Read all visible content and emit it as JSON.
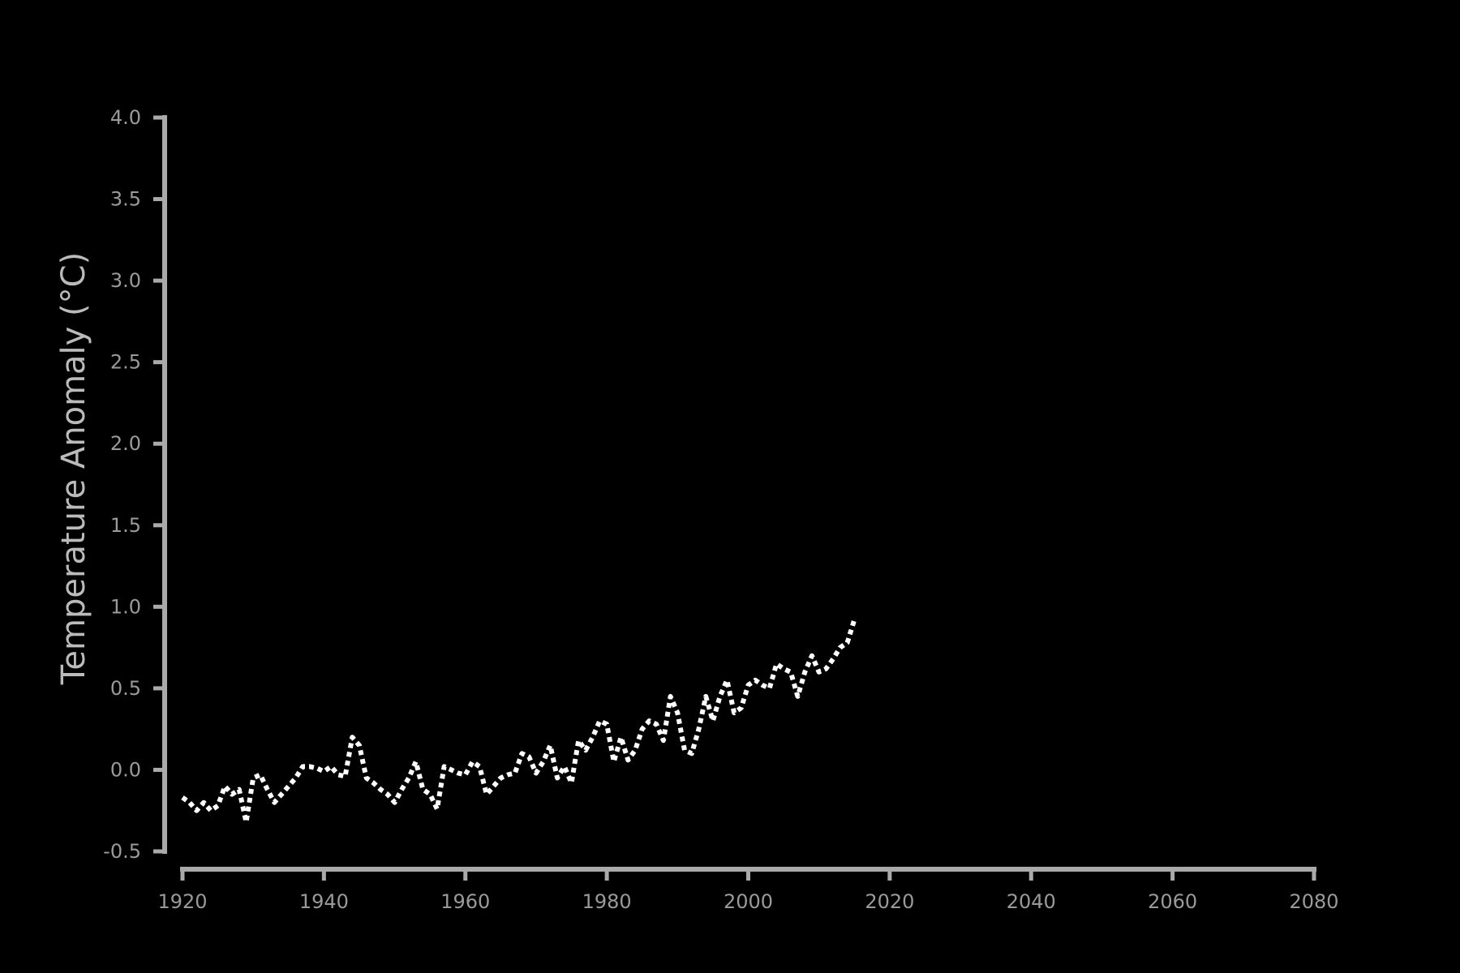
{
  "chart_data": {
    "type": "line",
    "ylabel": "Temperature Anomaly (°C)",
    "xlim": [
      1920,
      2080
    ],
    "ylim": [
      -0.5,
      4.0
    ],
    "x_ticks": [
      "1920",
      "1940",
      "1960",
      "1980",
      "2000",
      "2020",
      "2040",
      "2060",
      "2080"
    ],
    "y_ticks": [
      "4.0",
      "3.5",
      "3.0",
      "2.5",
      "2.0",
      "1.5",
      "1.0",
      "0.5",
      "0.0",
      "-0.5"
    ],
    "grid": false,
    "series": [
      {
        "line_style": "dotted",
        "x": [
          1920,
          1921,
          1922,
          1923,
          1924,
          1925,
          1926,
          1927,
          1928,
          1929,
          1930,
          1931,
          1932,
          1933,
          1934,
          1935,
          1936,
          1937,
          1938,
          1939,
          1940,
          1941,
          1942,
          1943,
          1944,
          1945,
          1946,
          1947,
          1948,
          1949,
          1950,
          1951,
          1952,
          1953,
          1954,
          1955,
          1956,
          1957,
          1958,
          1959,
          1960,
          1961,
          1962,
          1963,
          1964,
          1965,
          1966,
          1967,
          1968,
          1969,
          1970,
          1971,
          1972,
          1973,
          1974,
          1975,
          1976,
          1977,
          1978,
          1979,
          1980,
          1981,
          1982,
          1983,
          1984,
          1985,
          1986,
          1987,
          1988,
          1989,
          1990,
          1991,
          1992,
          1993,
          1994,
          1995,
          1996,
          1997,
          1998,
          1999,
          2000,
          2001,
          2002,
          2003,
          2004,
          2005,
          2006,
          2007,
          2008,
          2009,
          2010,
          2011,
          2012,
          2013,
          2014,
          2015
        ],
        "y": [
          -0.17,
          -0.2,
          -0.25,
          -0.2,
          -0.25,
          -0.22,
          -0.1,
          -0.15,
          -0.12,
          -0.32,
          -0.05,
          -0.03,
          -0.12,
          -0.2,
          -0.15,
          -0.1,
          -0.05,
          0.02,
          0.02,
          0.01,
          -0.01,
          0.02,
          -0.03,
          -0.04,
          0.2,
          0.15,
          -0.05,
          -0.08,
          -0.12,
          -0.15,
          -0.2,
          -0.12,
          -0.05,
          0.05,
          -0.12,
          -0.15,
          -0.24,
          0.02,
          0.0,
          -0.02,
          -0.03,
          0.05,
          0.02,
          -0.15,
          -0.1,
          -0.05,
          -0.03,
          -0.02,
          0.1,
          0.08,
          -0.02,
          0.05,
          0.15,
          -0.05,
          0.02,
          -0.08,
          0.18,
          0.12,
          0.2,
          0.3,
          0.28,
          0.05,
          0.2,
          0.06,
          0.12,
          0.25,
          0.3,
          0.28,
          0.18,
          0.45,
          0.35,
          0.12,
          0.1,
          0.25,
          0.45,
          0.3,
          0.45,
          0.55,
          0.35,
          0.38,
          0.52,
          0.55,
          0.52,
          0.5,
          0.65,
          0.62,
          0.6,
          0.45,
          0.6,
          0.7,
          0.6,
          0.62,
          0.68,
          0.75,
          0.78,
          0.92
        ],
        "color": "#ffffff"
      }
    ]
  },
  "colors": {
    "background": "#000000",
    "axis": "#aaaaaa",
    "tick_text": "#9a9a9a",
    "title_text": "#bbbbbb",
    "line": "#ffffff"
  }
}
